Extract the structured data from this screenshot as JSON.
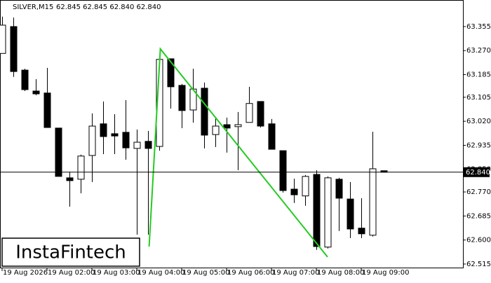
{
  "chart_data": {
    "type": "candlestick",
    "symbol": "SILVER,M15",
    "ohlc_text": "62.845 62.845 62.840 62.840",
    "categories": [
      "19 Aug 2026",
      null,
      null,
      null,
      "19 Aug 02:00",
      null,
      null,
      null,
      "19 Aug 03:00",
      null,
      null,
      null,
      "19 Aug 04:00",
      null,
      null,
      null,
      "19 Aug 05:00",
      null,
      null,
      null,
      "19 Aug 06:00",
      null,
      null,
      null,
      "19 Aug 07:00",
      null,
      null,
      null,
      "19 Aug 08:00",
      null,
      null,
      null,
      "19 Aug 09:00",
      null,
      null
    ],
    "open": [
      63.26,
      63.355,
      63.201,
      63.127,
      63.12,
      62.996,
      62.82,
      62.815,
      62.899,
      63.011,
      62.976,
      62.981,
      62.924,
      62.949,
      62.931,
      63.241,
      63.147,
      63.06,
      63.137,
      62.973,
      63.008,
      63.001,
      63.016,
      63.09,
      63.011,
      62.916,
      62.78,
      62.756,
      62.832,
      62.575,
      62.815,
      62.745,
      62.642,
      62.617,
      62.845
    ],
    "high": [
      63.39,
      63.387,
      63.206,
      63.169,
      63.209,
      62.996,
      62.842,
      62.902,
      63.048,
      63.09,
      63.045,
      63.095,
      62.991,
      62.986,
      63.243,
      63.241,
      63.152,
      63.206,
      63.157,
      63.033,
      63.033,
      63.053,
      63.142,
      63.09,
      63.028,
      62.916,
      62.817,
      62.83,
      62.847,
      62.825,
      62.82,
      62.805,
      62.748,
      62.983,
      62.845
    ],
    "low": [
      63.26,
      63.177,
      63.127,
      63.112,
      62.998,
      62.825,
      62.718,
      62.765,
      62.805,
      62.904,
      62.904,
      62.884,
      62.619,
      62.619,
      62.916,
      63.065,
      62.996,
      63.015,
      62.924,
      62.929,
      62.909,
      62.847,
      63.016,
      62.998,
      62.921,
      62.768,
      62.731,
      62.721,
      62.565,
      62.57,
      62.632,
      62.607,
      62.607,
      62.612,
      62.84
    ],
    "close": [
      63.36,
      63.196,
      63.132,
      63.117,
      62.998,
      62.825,
      62.81,
      62.897,
      63.003,
      62.966,
      62.968,
      62.926,
      62.946,
      62.924,
      63.239,
      63.142,
      63.058,
      63.134,
      62.971,
      63.003,
      62.996,
      63.008,
      63.083,
      63.003,
      62.921,
      62.775,
      62.76,
      62.825,
      62.577,
      62.82,
      62.748,
      62.639,
      62.622,
      62.852,
      62.84
    ],
    "up_color": "#ffffff",
    "down_color": "#000000",
    "ylim": [
      62.5,
      63.449
    ],
    "yticks": [
      {
        "value": 63.355,
        "label": "63.355"
      },
      {
        "value": 63.27,
        "label": "63.270"
      },
      {
        "value": 63.185,
        "label": "63.185"
      },
      {
        "value": 63.105,
        "label": "63.105"
      },
      {
        "value": 63.02,
        "label": "63.020"
      },
      {
        "value": 62.935,
        "label": "62.935"
      },
      {
        "value": 62.85,
        "label": "62.850"
      },
      {
        "value": 62.77,
        "label": "62.770"
      },
      {
        "value": 62.685,
        "label": "62.685"
      },
      {
        "value": 62.6,
        "label": "62.600"
      },
      {
        "value": 62.515,
        "label": "62.515"
      }
    ],
    "current_price": {
      "value": 62.84,
      "label": "62.840"
    },
    "pattern": {
      "color": "#22cc22",
      "points": [
        {
          "index": 13.1,
          "value": 62.577
        },
        {
          "index": 14.1,
          "value": 63.276
        },
        {
          "index": 29,
          "value": 62.54
        }
      ]
    },
    "watermark": "InstaFintech"
  }
}
